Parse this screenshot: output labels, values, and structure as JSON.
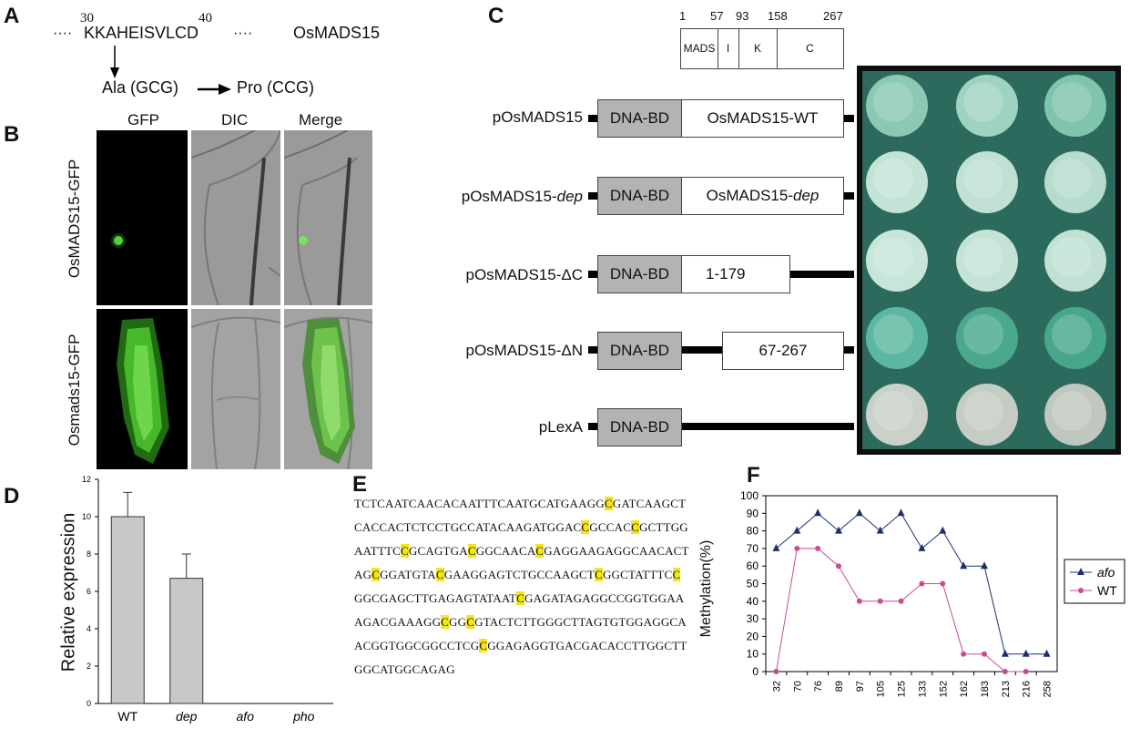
{
  "panelA": {
    "label": "A",
    "num30": "30",
    "num40": "40",
    "dots_left": "····",
    "sequence": "KKAHEISVLCD",
    "dots_right": "····",
    "gene": "OsMADS15",
    "ala": "Ala (GCG)",
    "pro": "Pro (CCG)"
  },
  "panelB": {
    "label": "B",
    "col_headers": [
      "GFP",
      "DIC",
      "Merge"
    ],
    "row_labels": [
      "OsMADS15-GFP",
      "Osmads15-GFP"
    ]
  },
  "panelC": {
    "label": "C",
    "domain_positions": [
      "1",
      "57",
      "93",
      "158",
      "267"
    ],
    "domains": [
      "MADS",
      "I",
      "K",
      "C"
    ],
    "dna_bd": "DNA-BD",
    "constructs": [
      {
        "name": "pOsMADS15",
        "name_italic": "",
        "insert": "OsMADS15-WT",
        "insert_italic": ""
      },
      {
        "name": "pOsMADS15-",
        "name_italic": "dep",
        "insert": "OsMADS15-",
        "insert_italic": "dep"
      },
      {
        "name": "pOsMADS15-ΔC",
        "name_italic": "",
        "insert": "1-179",
        "insert_italic": ""
      },
      {
        "name": "pOsMADS15-ΔN",
        "name_italic": "",
        "insert": "67-267",
        "insert_italic": ""
      },
      {
        "name": "pLexA",
        "name_italic": "",
        "insert": "",
        "insert_italic": ""
      }
    ],
    "colony_colors": [
      [
        "#8cc9b4",
        "#9fd2c0",
        "#7fc4ad"
      ],
      [
        "#c4e3d7",
        "#bfe0d3",
        "#b5dccd"
      ],
      [
        "#c8e5d9",
        "#c4e2d5",
        "#c0e1d3"
      ],
      [
        "#5cb7a0",
        "#4aa88f",
        "#48a68d"
      ],
      [
        "#c9d1c9",
        "#c4ccc4",
        "#bfc7bf"
      ]
    ]
  },
  "panelD": {
    "label": "D",
    "chart_data": {
      "type": "bar",
      "categories": [
        "WT",
        "dep",
        "afo",
        "pho"
      ],
      "values": [
        10.0,
        6.7,
        0,
        0
      ],
      "errors": [
        1.3,
        1.3,
        0,
        0
      ],
      "ylabel": "Relative expression",
      "ylim": [
        0,
        12
      ],
      "yticks": [
        "0",
        "2",
        "4",
        "6",
        "8",
        "10",
        "12"
      ],
      "bar_color": "#c8c8c8"
    }
  },
  "panelE": {
    "label": "E",
    "seq_lines": [
      [
        [
          "TCTCAATCAACACAATTTCAATGCATGAAGG",
          0
        ],
        [
          "C",
          1
        ],
        [
          "GATCAAGCT",
          0
        ]
      ],
      [
        [
          "CACCACTCTCCTGCCATACAAGATGGAC",
          0
        ],
        [
          "C",
          1
        ],
        [
          "GCCAC",
          0
        ],
        [
          "C",
          1
        ],
        [
          "GCTTGG",
          0
        ]
      ],
      [
        [
          "AATTTC",
          0
        ],
        [
          "C",
          1
        ],
        [
          "GCAGTGA",
          0
        ],
        [
          "C",
          1
        ],
        [
          "GGCAACA",
          0
        ],
        [
          "C",
          1
        ],
        [
          "GAGGAAGAGGCAACACT",
          0
        ]
      ],
      [
        [
          "AG",
          0
        ],
        [
          "C",
          1
        ],
        [
          "GGATGTA",
          0
        ],
        [
          "C",
          1
        ],
        [
          "GAAGGAGTCTGCCAAGCT",
          0
        ],
        [
          "C",
          1
        ],
        [
          "GGCTATTTC",
          0
        ],
        [
          "C",
          1
        ]
      ],
      [
        [
          "GGCGAGCTTGAGAGTATAAT",
          0
        ],
        [
          "C",
          1
        ],
        [
          "GAGATAGAGGCCGGTGGAA",
          0
        ]
      ],
      [
        [
          "AGACGAAAGG",
          0
        ],
        [
          "C",
          1
        ],
        [
          "GG",
          0
        ],
        [
          "C",
          1
        ],
        [
          "GTACTCTTGGGCTTAGTGTGGAGGCA",
          0
        ]
      ],
      [
        [
          "ACGGTGGCGGCCTCG",
          0
        ],
        [
          "C",
          1
        ],
        [
          "GGAGAGGTGACGACACCTTGGCTT",
          0
        ]
      ],
      [
        [
          "GGCATGGCAGAG",
          0
        ]
      ]
    ]
  },
  "panelF": {
    "label": "F",
    "chart_data": {
      "type": "line",
      "categories": [
        "32",
        "70",
        "76",
        "89",
        "97",
        "105",
        "125",
        "133",
        "152",
        "162",
        "183",
        "213",
        "216",
        "258"
      ],
      "series": [
        {
          "name": "afo",
          "values": [
            70,
            80,
            90,
            80,
            90,
            80,
            90,
            70,
            80,
            60,
            60,
            10,
            10,
            10
          ],
          "color": "#1f2f6e",
          "marker": "triangle"
        },
        {
          "name": "WT",
          "values": [
            0,
            70,
            70,
            60,
            40,
            40,
            40,
            50,
            50,
            10,
            10,
            0,
            0,
            null
          ],
          "color": "#c94b97",
          "marker": "circle"
        }
      ],
      "ylabel": "Methylation(%)",
      "ylim": [
        0,
        100
      ],
      "yticks": [
        "0",
        "10",
        "20",
        "30",
        "40",
        "50",
        "60",
        "70",
        "80",
        "90",
        "100"
      ],
      "legend": "right"
    }
  }
}
